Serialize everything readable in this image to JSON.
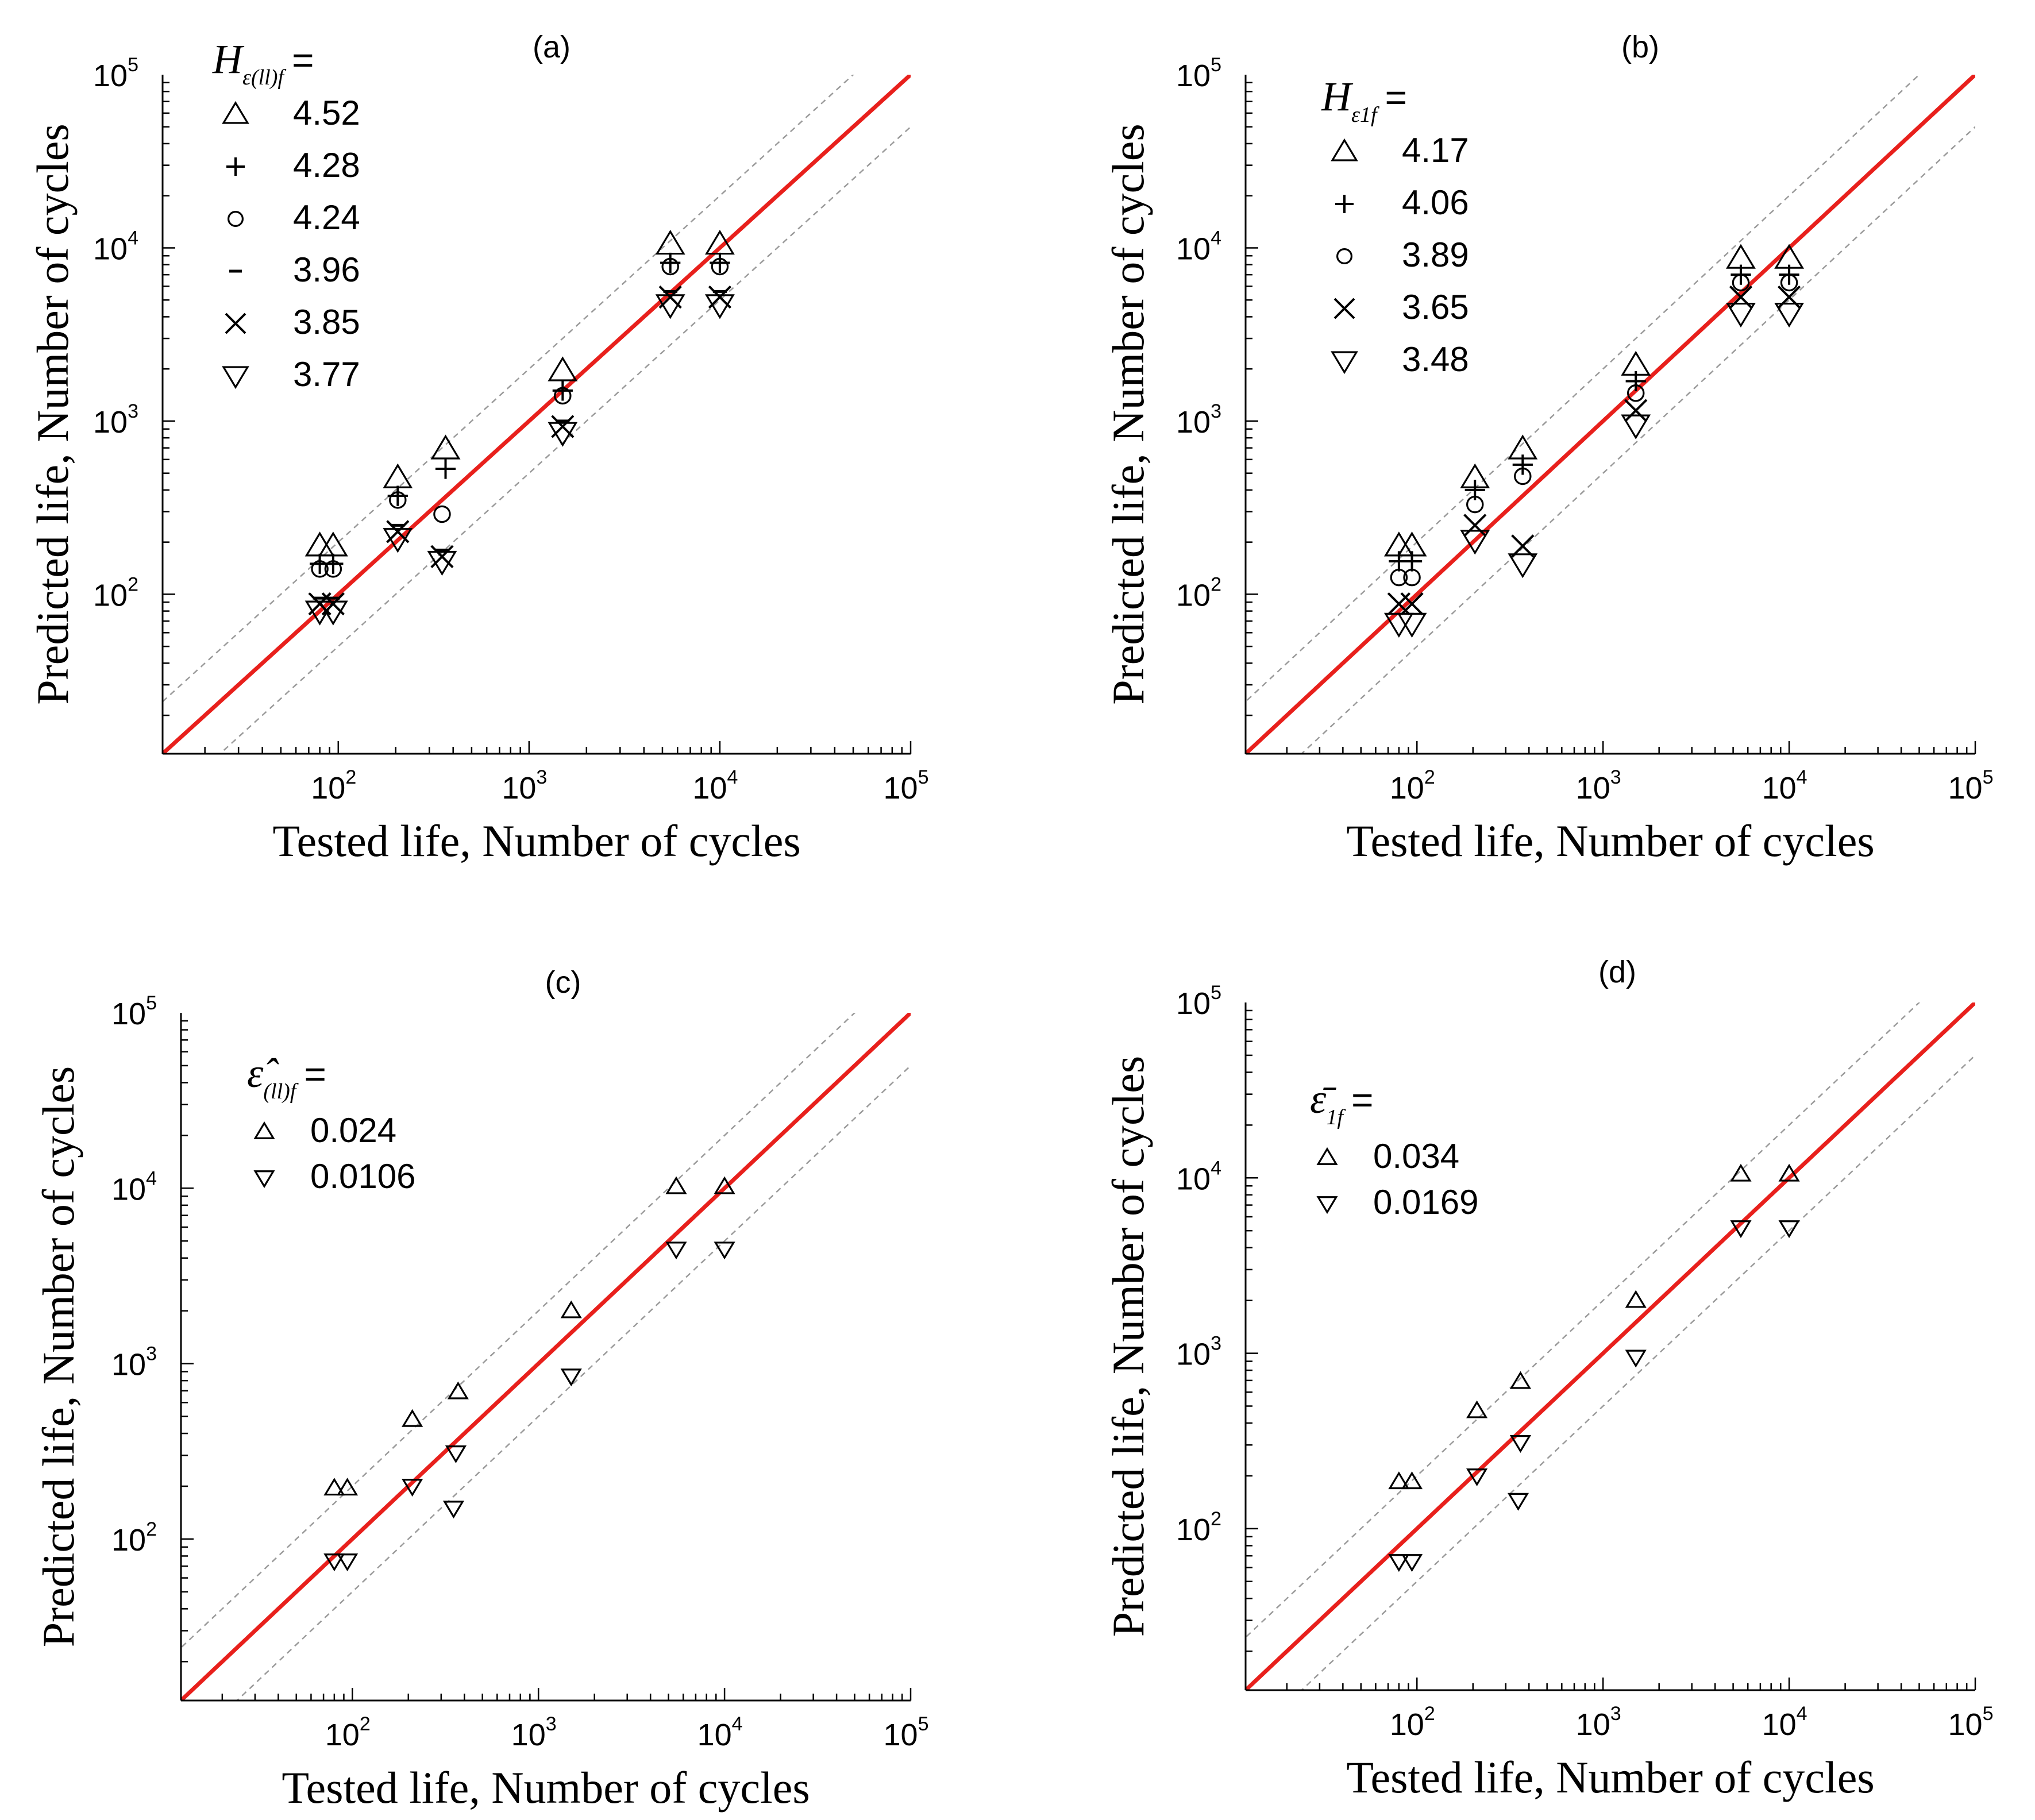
{
  "chart_data": [
    {
      "type": "scatter",
      "panel_label": "(a)",
      "xlabel": "Tested life, Number of cycles",
      "ylabel": "Predicted life, Number of cycles",
      "xscale": "log",
      "yscale": "log",
      "xlim": [
        12,
        100000
      ],
      "ylim": [
        12,
        100000
      ],
      "x_ticks": [
        100,
        1000,
        10000,
        100000
      ],
      "y_ticks": [
        100,
        1000,
        10000,
        100000
      ],
      "legend": {
        "title_symbol": "H",
        "title_sub": "ε(ll)f",
        "title_eq": "=",
        "position": "top-left",
        "large_markers": true
      },
      "reference_lines": [
        {
          "name": "y=x",
          "factor": 1,
          "color": "#e8201c",
          "style": "solid"
        },
        {
          "name": "factor-2 upper",
          "factor": 2,
          "color": "#9a9a9a",
          "style": "dashed"
        },
        {
          "name": "factor-2 lower",
          "factor": 0.5,
          "color": "#9a9a9a",
          "style": "dashed"
        }
      ],
      "series": [
        {
          "label": "4.52",
          "marker": "triangle-up",
          "x": [
            80,
            94,
            205,
            365,
            1500,
            5500,
            10000
          ],
          "y": [
            190,
            190,
            470,
            690,
            1950,
            10500,
            10500
          ]
        },
        {
          "label": "4.28",
          "marker": "plus",
          "x": [
            80,
            94,
            205,
            365,
            1500,
            5500,
            10000
          ],
          "y": [
            150,
            150,
            370,
            530,
            1500,
            8200,
            8200
          ]
        },
        {
          "label": "4.24",
          "marker": "circle",
          "x": [
            80,
            94,
            205,
            350,
            1500,
            5500,
            10000
          ],
          "y": [
            140,
            140,
            350,
            290,
            1400,
            7800,
            7800
          ]
        },
        {
          "label": "3.96",
          "marker": "dash",
          "x": [
            80,
            94,
            205,
            350,
            1500,
            5500,
            10000
          ],
          "y": [
            95,
            95,
            250,
            180,
            1000,
            5600,
            5600
          ]
        },
        {
          "label": "3.85",
          "marker": "x",
          "x": [
            80,
            94,
            205,
            350,
            1500,
            5500,
            10000
          ],
          "y": [
            88,
            88,
            230,
            165,
            930,
            5200,
            5200
          ]
        },
        {
          "label": "3.77",
          "marker": "triangle-down",
          "x": [
            80,
            94,
            205,
            350,
            1500,
            5500,
            10000
          ],
          "y": [
            80,
            80,
            210,
            155,
            860,
            4700,
            4700
          ]
        }
      ]
    },
    {
      "type": "scatter",
      "panel_label": "(b)",
      "xlabel": "Tested life, Number of cycles",
      "ylabel": "Predicted life, Number of cycles",
      "xscale": "log",
      "yscale": "log",
      "xlim": [
        12,
        100000
      ],
      "ylim": [
        12,
        100000
      ],
      "x_ticks": [
        100,
        1000,
        10000,
        100000
      ],
      "y_ticks": [
        100,
        1000,
        10000,
        100000
      ],
      "legend": {
        "title_symbol": "H",
        "title_sub": "ε1f",
        "title_eq": "=",
        "position": "top-left",
        "large_markers": true
      },
      "reference_lines": [
        {
          "name": "y=x",
          "factor": 1,
          "color": "#e8201c",
          "style": "solid"
        },
        {
          "name": "factor-2 upper",
          "factor": 2,
          "color": "#9a9a9a",
          "style": "dashed"
        },
        {
          "name": "factor-2 lower",
          "factor": 0.5,
          "color": "#9a9a9a",
          "style": "dashed"
        }
      ],
      "series": [
        {
          "label": "4.17",
          "marker": "triangle-up",
          "x": [
            80,
            94,
            205,
            370,
            1500,
            5500,
            10000
          ],
          "y": [
            190,
            190,
            470,
            690,
            2100,
            8700,
            8700
          ]
        },
        {
          "label": "4.06",
          "marker": "plus",
          "x": [
            80,
            94,
            205,
            370,
            1500,
            5500,
            10000
          ],
          "y": [
            155,
            155,
            400,
            560,
            1700,
            7000,
            7000
          ]
        },
        {
          "label": "3.89",
          "marker": "circle",
          "x": [
            80,
            94,
            205,
            370,
            1500,
            5500,
            10000
          ],
          "y": [
            125,
            125,
            330,
            480,
            1450,
            6300,
            6300
          ]
        },
        {
          "label": "3.65",
          "marker": "x",
          "x": [
            80,
            94,
            205,
            370,
            1500,
            5500,
            10000
          ],
          "y": [
            88,
            88,
            250,
            190,
            1150,
            5200,
            5200
          ]
        },
        {
          "label": "3.48",
          "marker": "triangle-down",
          "x": [
            80,
            94,
            205,
            370,
            1500,
            5500,
            10000
          ],
          "y": [
            68,
            68,
            205,
            150,
            950,
            4200,
            4200
          ]
        }
      ]
    },
    {
      "type": "scatter",
      "panel_label": "(c)",
      "xlabel": "Tested life, Number of cycles",
      "ylabel": "Predicted life, Number of cycles",
      "xscale": "log",
      "yscale": "log",
      "xlim": [
        12,
        100000
      ],
      "ylim": [
        12,
        100000
      ],
      "x_ticks": [
        100,
        1000,
        10000,
        100000
      ],
      "y_ticks": [
        100,
        1000,
        10000,
        100000
      ],
      "legend": {
        "title_symbol": "ε̂",
        "title_sub": "(ll)f",
        "title_eq": "=",
        "position": "top-left",
        "large_markers": false
      },
      "reference_lines": [
        {
          "name": "y=x",
          "factor": 1,
          "color": "#e8201c",
          "style": "solid"
        },
        {
          "name": "factor-2 upper",
          "factor": 2,
          "color": "#9a9a9a",
          "style": "dashed"
        },
        {
          "name": "factor-2 lower",
          "factor": 0.5,
          "color": "#9a9a9a",
          "style": "dashed"
        }
      ],
      "series": [
        {
          "label": "0.024",
          "marker": "triangle-up",
          "x": [
            80,
            94,
            210,
            370,
            1500,
            5500,
            10000
          ],
          "y": [
            195,
            195,
            480,
            690,
            2000,
            10200,
            10200
          ]
        },
        {
          "label": "0.0106",
          "marker": "triangle-down",
          "x": [
            80,
            94,
            210,
            350,
            360,
            1500,
            5500,
            10000
          ],
          "y": [
            75,
            75,
            200,
            150,
            310,
            850,
            4500,
            4500
          ]
        }
      ]
    },
    {
      "type": "scatter",
      "panel_label": "(d)",
      "xlabel": "Tested life, Number of cycles",
      "ylabel": "Predicted life, Number of cycles",
      "xscale": "log",
      "yscale": "log",
      "xlim": [
        12,
        100000
      ],
      "ylim": [
        12,
        100000
      ],
      "x_ticks": [
        100,
        1000,
        10000,
        100000
      ],
      "y_ticks": [
        100,
        1000,
        10000,
        100000
      ],
      "legend": {
        "title_symbol": "ε̄",
        "title_sub": "1f",
        "title_eq": "=",
        "position": "top-left",
        "large_markers": false
      },
      "reference_lines": [
        {
          "name": "y=x",
          "factor": 1,
          "color": "#e8201c",
          "style": "solid"
        },
        {
          "name": "factor-2 upper",
          "factor": 2,
          "color": "#9a9a9a",
          "style": "dashed"
        },
        {
          "name": "factor-2 lower",
          "factor": 0.5,
          "color": "#9a9a9a",
          "style": "dashed"
        }
      ],
      "series": [
        {
          "label": "0.034",
          "marker": "triangle-up",
          "x": [
            80,
            94,
            210,
            360,
            1500,
            5500,
            10000
          ],
          "y": [
            185,
            185,
            470,
            690,
            2000,
            10500,
            10500
          ]
        },
        {
          "label": "0.0169",
          "marker": "triangle-down",
          "x": [
            80,
            94,
            210,
            350,
            360,
            1500,
            5500,
            10000
          ],
          "y": [
            65,
            65,
            200,
            145,
            310,
            950,
            5200,
            5200
          ]
        }
      ]
    }
  ]
}
